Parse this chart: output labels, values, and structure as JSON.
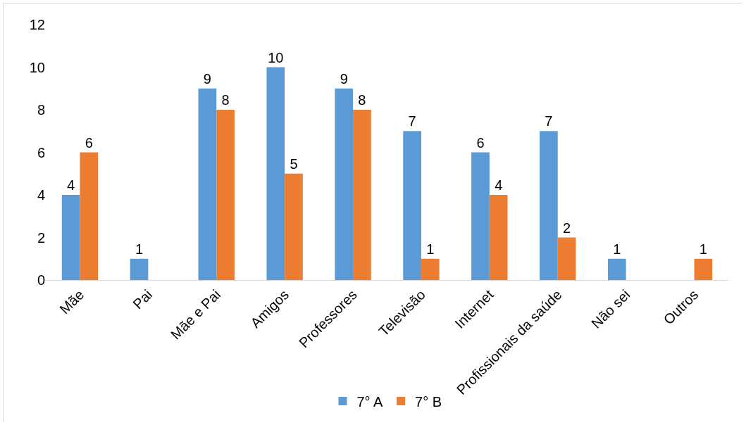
{
  "chart_data": {
    "type": "bar",
    "categories": [
      "Mãe",
      "Pai",
      "Mãe e Pai",
      "Amigos",
      "Professores",
      "Televisão",
      "Internet",
      "Profissionais da saúde",
      "Não sei",
      "Outros"
    ],
    "series": [
      {
        "name": "7° A",
        "color": "#5b9bd5",
        "values": [
          4,
          1,
          9,
          10,
          9,
          7,
          6,
          7,
          1,
          0
        ],
        "value_labels": [
          "4",
          "1",
          "9",
          "10",
          "9",
          "7",
          "6",
          "7",
          "1",
          null
        ]
      },
      {
        "name": "7° B",
        "color": "#ed7d31",
        "values": [
          6,
          0,
          8,
          5,
          8,
          1,
          4,
          2,
          0,
          1
        ],
        "value_labels": [
          "6",
          null,
          "8",
          "5",
          "8",
          "1",
          "4",
          "2",
          null,
          "1"
        ]
      }
    ],
    "ylim": [
      0,
      12
    ],
    "yticks": [
      0,
      2,
      4,
      6,
      8,
      10,
      12
    ],
    "grid": false,
    "legend": "bottom"
  }
}
